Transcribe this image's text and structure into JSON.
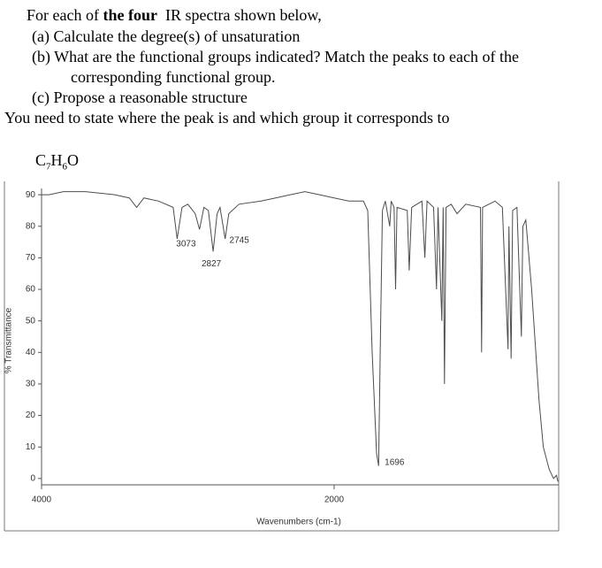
{
  "question": {
    "intro_before": "For each of",
    "intro_bold": "the four",
    "intro_after": "IR spectra shown below,",
    "item_a": "(a) Calculate the degree(s) of unsaturation",
    "item_b": "(b)  What are the functional groups indicated?  Match the peaks to each of the",
    "item_b_cont": "corresponding functional group.",
    "item_c": "(c) Propose a reasonable structure",
    "note": "You need to state where the peak is and which group it corresponds to"
  },
  "formula": {
    "c": "C",
    "c_n": "7",
    "h": "H",
    "h_n": "6",
    "o": "O"
  },
  "chart_data": {
    "type": "line",
    "xlabel": "Wavenumbers (cm-1)",
    "ylabel": "% Transmittance",
    "xlim": [
      4000,
      465
    ],
    "ylim": [
      -2,
      92
    ],
    "xticks": [
      4000,
      2000
    ],
    "yticks": [
      0,
      10,
      20,
      30,
      40,
      50,
      60,
      70,
      80,
      90
    ],
    "color": "#4d4d4d",
    "peaks": [
      3073,
      2827,
      2745,
      1696
    ],
    "x": [
      4000,
      3950,
      3850,
      3700,
      3500,
      3400,
      3350,
      3300,
      3200,
      3100,
      3073,
      3040,
      3000,
      2950,
      2920,
      2890,
      2860,
      2827,
      2800,
      2780,
      2745,
      2720,
      2650,
      2500,
      2400,
      2300,
      2200,
      2100,
      2000,
      1900,
      1800,
      1770,
      1740,
      1710,
      1696,
      1685,
      1670,
      1650,
      1620,
      1610,
      1590,
      1580,
      1570,
      1500,
      1487,
      1470,
      1400,
      1380,
      1365,
      1320,
      1300,
      1290,
      1264,
      1255,
      1246,
      1235,
      1200,
      1160,
      1100,
      1000,
      992,
      985,
      900,
      850,
      811,
      805,
      790,
      780,
      750,
      720,
      710,
      690,
      650,
      600,
      570,
      530,
      500,
      480,
      470
    ],
    "values": [
      90,
      90,
      91,
      91,
      90,
      89,
      86,
      89,
      88,
      86,
      76,
      86,
      87,
      84,
      79,
      86,
      85,
      72,
      84,
      86,
      76,
      84,
      87,
      88,
      89,
      90,
      91,
      90,
      89,
      88,
      88,
      85,
      40,
      8,
      4,
      40,
      85,
      88,
      80,
      88,
      86,
      60,
      86,
      85,
      66,
      86,
      88,
      70,
      88,
      86,
      60,
      86,
      50,
      86,
      30,
      86,
      87,
      84,
      87,
      86,
      40,
      86,
      88,
      86,
      41,
      80,
      38,
      85,
      86,
      45,
      80,
      82,
      60,
      25,
      10,
      3,
      0,
      1,
      -1
    ]
  }
}
